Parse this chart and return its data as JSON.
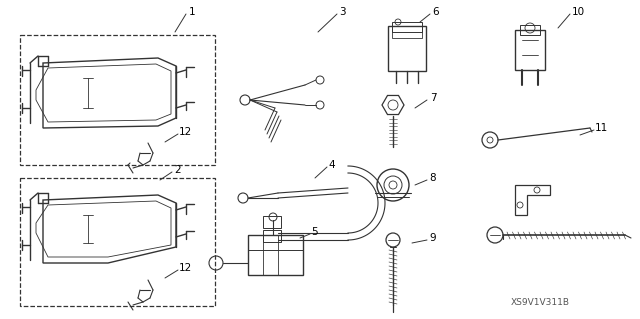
{
  "bg_color": "#ffffff",
  "line_color": "#333333",
  "label_color": "#000000",
  "diagram_code": "XS9V1V311B",
  "fig_width": 6.4,
  "fig_height": 3.19,
  "dpi": 100
}
